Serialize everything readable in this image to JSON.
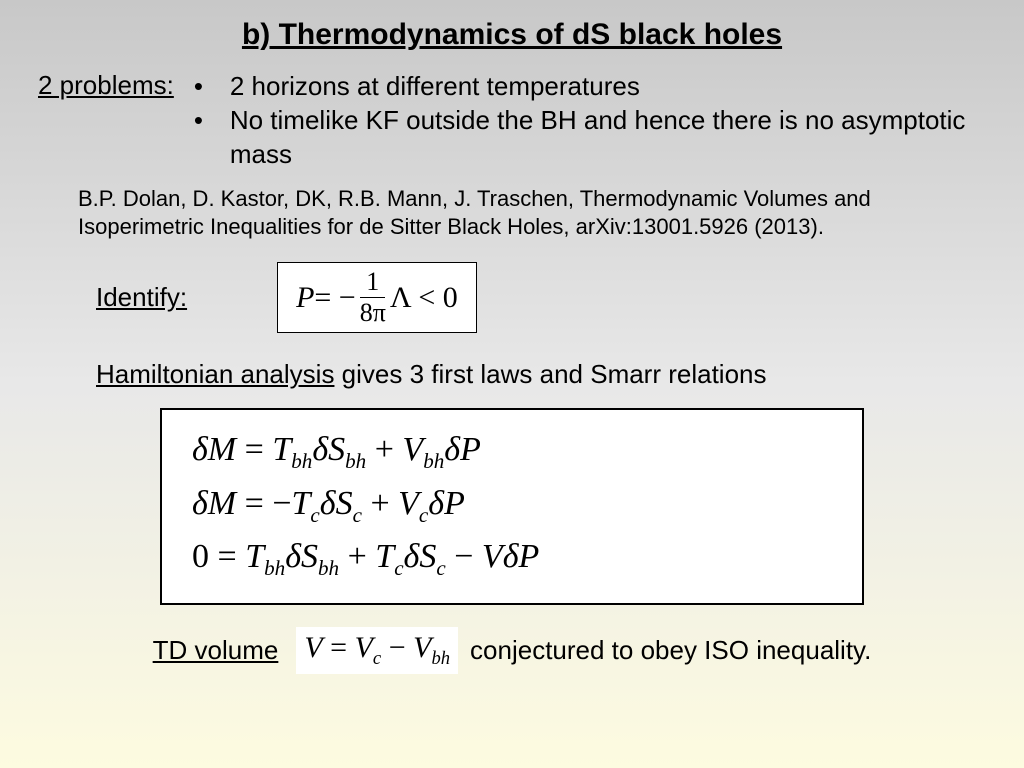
{
  "title": "b) Thermodynamics of dS black holes",
  "problems_label": "2 problems:",
  "problems": [
    "2 horizons at different temperatures",
    "No timelike KF outside the BH and hence there is no asymptotic mass"
  ],
  "citation": "B.P. Dolan, D. Kastor, DK, R.B. Mann, J. Traschen, Thermodynamic Volumes and Isoperimetric Inequalities for de Sitter Black Holes, arXiv:13001.5926 (2013).",
  "identify_label": "Identify:",
  "identify_eq": {
    "lhs": "P",
    "op1": " = −",
    "frac_num": "1",
    "frac_den": "8π",
    "rhs": "Λ < 0"
  },
  "hamiltonian_underlined": "Hamiltonian analysis",
  "hamiltonian_rest": " gives 3 first laws and Smarr relations",
  "equations": {
    "line1": {
      "l": "δM",
      "eq": " = ",
      "t1": "T",
      "s1": "bh",
      "d1": "δS",
      "s2": "bh",
      "plus": " + ",
      "v": "V",
      "s3": "bh",
      "dp": "δP"
    },
    "line2": {
      "l": "δM",
      "eq": " = −",
      "t1": "T",
      "s1": "c",
      "d1": "δS",
      "s2": "c",
      "plus": " + ",
      "v": "V",
      "s3": "c",
      "dp": "δP"
    },
    "line3": {
      "l": "0",
      "eq": " = ",
      "t1": "T",
      "s1": "bh",
      "d1": "δS",
      "s2": "bh",
      "plus": " + ",
      "t2": "T",
      "s3": "c",
      "d2": "δS",
      "s4": "c",
      "minus": " − ",
      "v": "V",
      "dp": "δP"
    }
  },
  "td_label": "TD volume",
  "td_eq": {
    "v": "V",
    "eq": " = ",
    "vc": "V",
    "sc": "c",
    "minus": " − ",
    "vbh": "V",
    "sbh": "bh"
  },
  "td_rest": "conjectured to obey ISO inequality.",
  "colors": {
    "bg_top": "#c8c8c8",
    "bg_mid": "#e8e8e8",
    "bg_bot": "#fdfbe0",
    "box_bg": "#ffffff",
    "text": "#000000"
  },
  "fonts": {
    "title_size": 30,
    "body_size": 26,
    "citation_size": 22,
    "eq_small_size": 30,
    "eq_large_size": 34
  }
}
